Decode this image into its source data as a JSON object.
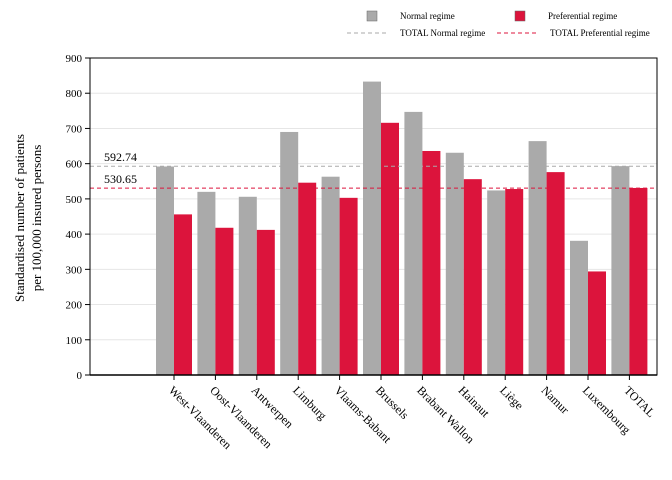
{
  "chart_data": {
    "type": "bar",
    "ylabel_lines": [
      "Standardised number of patients",
      "per 100,000 insured persons"
    ],
    "ylim": [
      0,
      900
    ],
    "yticks": [
      0,
      100,
      200,
      300,
      400,
      500,
      600,
      700,
      800,
      900
    ],
    "grid": true,
    "legend_position": "top-right",
    "categories": [
      "West-Vlaanderen",
      "Oost-Vlaanderen",
      "Antwerpen",
      "Limburg",
      "Vlaams-Babant",
      "Brussels",
      "Brabant Wallon",
      "Hainaut",
      "Liège",
      "Namur",
      "Luxembourg",
      "TOTAL"
    ],
    "series": [
      {
        "name": "Normal regime",
        "color": "#aaaaaa",
        "values": [
          592,
          520,
          506,
          690,
          563,
          833,
          747,
          631,
          524,
          664,
          381,
          593
        ]
      },
      {
        "name": "Preferential regime",
        "color": "#dc143c",
        "values": [
          456,
          418,
          412,
          546,
          503,
          716,
          636,
          556,
          528,
          576,
          294,
          531
        ]
      }
    ],
    "reference_lines": [
      {
        "name": "TOTAL Normal regime",
        "value": 592.74,
        "label": "592.74",
        "color": "#aaaaaa"
      },
      {
        "name": "TOTAL Preferential regime",
        "value": 530.65,
        "label": "530.65",
        "color": "#dc143c"
      }
    ]
  }
}
